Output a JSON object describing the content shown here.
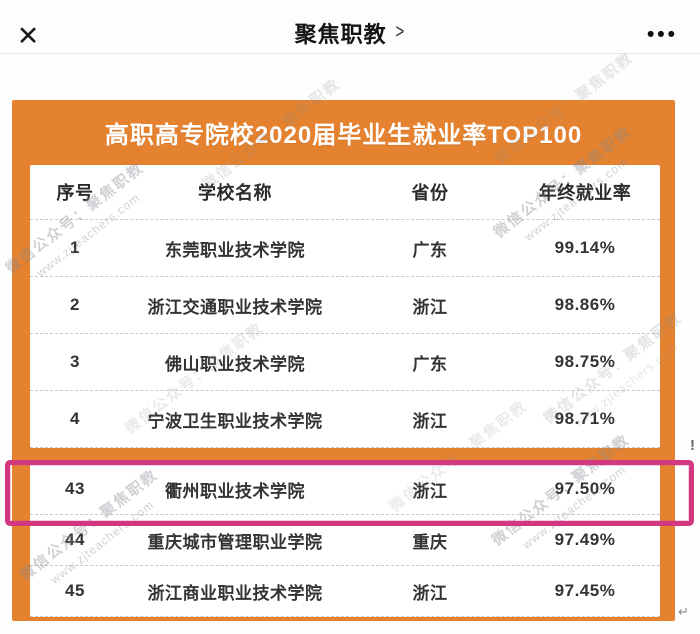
{
  "topbar": {
    "close_icon": "✕",
    "title": "聚焦职教",
    "chevron": ">",
    "more_icon": "•••"
  },
  "panel": {
    "title": "高职高专院校2020届毕业生就业率TOP100",
    "columns": [
      "序号",
      "学校名称",
      "省份",
      "年终就业率"
    ],
    "rows_top": [
      {
        "rank": "1",
        "school": "东莞职业技术学院",
        "province": "广东",
        "rate": "99.14%"
      },
      {
        "rank": "2",
        "school": "浙江交通职业技术学院",
        "province": "浙江",
        "rate": "98.86%"
      },
      {
        "rank": "3",
        "school": "佛山职业技术学院",
        "province": "广东",
        "rate": "98.75%"
      },
      {
        "rank": "4",
        "school": "宁波卫生职业技术学院",
        "province": "浙江",
        "rate": "98.71%"
      }
    ],
    "rows_bottom": [
      {
        "rank": "43",
        "school": "衢州职业技术学院",
        "province": "浙江",
        "rate": "97.50%",
        "highlighted": true
      },
      {
        "rank": "44",
        "school": "重庆城市管理职业学院",
        "province": "重庆",
        "rate": "97.49%"
      },
      {
        "rank": "45",
        "school": "浙江商业职业技术学院",
        "province": "浙江",
        "rate": "97.45%"
      }
    ]
  },
  "watermark": {
    "line1": "微信公众号：聚焦职教",
    "line2": "www.zjteachers.com"
  },
  "marks": {
    "exclamation": "!",
    "return_arrow": "↵"
  },
  "colors": {
    "accent": "#e5822f",
    "highlight": "#d23880",
    "title_text": "#ffffff"
  }
}
